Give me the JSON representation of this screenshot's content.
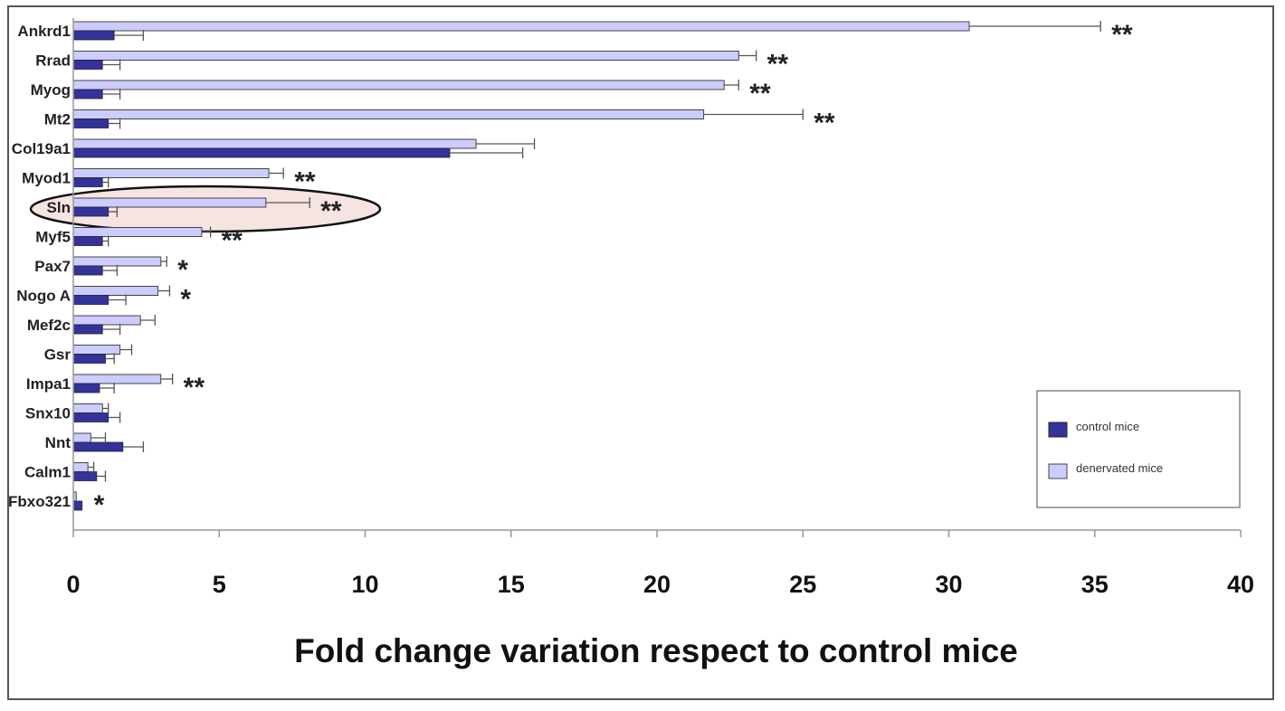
{
  "chart_data": {
    "type": "bar",
    "orientation": "horizontal",
    "categories": [
      "Ankrd1",
      "Rrad",
      "Myog",
      "Mt2",
      "Col19a1",
      "Myod1",
      "Sln",
      "Myf5",
      "Pax7",
      "Nogo A",
      "Mef2c",
      "Gsr",
      "Impa1",
      "Snx10",
      "Nnt",
      "Calm1",
      "Fbxo321"
    ],
    "series": [
      {
        "name": "denervated mice",
        "color": "#ccccff",
        "values": [
          30.7,
          22.8,
          22.3,
          21.6,
          13.8,
          6.7,
          6.6,
          4.4,
          3.0,
          2.9,
          2.3,
          1.6,
          3.0,
          1.0,
          0.6,
          0.5,
          0.1
        ],
        "errors": [
          4.5,
          0.6,
          0.5,
          3.4,
          2.0,
          0.5,
          1.5,
          0.3,
          0.2,
          0.4,
          0.5,
          0.4,
          0.4,
          0.2,
          0.5,
          0.2,
          0.0
        ]
      },
      {
        "name": "control mice",
        "color": "#333399",
        "values": [
          1.4,
          1.0,
          1.0,
          1.2,
          12.9,
          1.0,
          1.2,
          1.0,
          1.0,
          1.2,
          1.0,
          1.1,
          0.9,
          1.2,
          1.7,
          0.8,
          0.3
        ],
        "errors": [
          1.0,
          0.6,
          0.6,
          0.4,
          2.5,
          0.2,
          0.3,
          0.2,
          0.5,
          0.6,
          0.6,
          0.3,
          0.5,
          0.4,
          0.7,
          0.3,
          0.0
        ]
      }
    ],
    "significance": [
      "**",
      "**",
      "**",
      "**",
      "",
      "**",
      "**",
      "**",
      "*",
      "*",
      "",
      "",
      "**",
      "",
      "",
      "",
      "*"
    ],
    "highlighted_category": "Sln",
    "xlim": [
      0,
      40
    ],
    "xticks": [
      "0",
      "5",
      "10",
      "15",
      "20",
      "25",
      "30",
      "35",
      "40"
    ],
    "xlabel": "Fold change variation respect to control mice",
    "ylabel": "",
    "title": "",
    "legend_position": "right",
    "grid": false
  }
}
